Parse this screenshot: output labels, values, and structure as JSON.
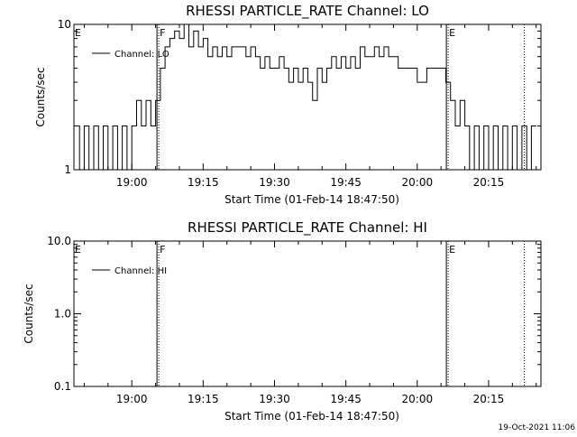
{
  "chart_data": [
    {
      "type": "line",
      "title": "RHESSI PARTICLE_RATE Channel: LO",
      "xlabel": "Start Time (01-Feb-14 18:47:50)",
      "ylabel": "Counts/sec",
      "y_scale": "log",
      "ylim": [
        1,
        10
      ],
      "xlim": [
        "18:47:50",
        "20:26:00"
      ],
      "ytick_labels": [
        "1",
        "10"
      ],
      "y_tick_values": [
        1,
        10
      ],
      "xtick_labels": [
        "19:00",
        "19:15",
        "19:30",
        "19:45",
        "20:00",
        "20:15"
      ],
      "grid": false,
      "legend_position": "top-left",
      "series": [
        {
          "name": "Channel: LO",
          "x": [
            "18:48",
            "18:49",
            "18:50",
            "18:51",
            "18:52",
            "18:53",
            "18:54",
            "18:55",
            "18:56",
            "18:57",
            "18:58",
            "18:59",
            "19:00",
            "19:01",
            "19:02",
            "19:03",
            "19:04",
            "19:05",
            "19:06",
            "19:07",
            "19:08",
            "19:09",
            "19:10",
            "19:11",
            "19:12",
            "19:13",
            "19:14",
            "19:15",
            "19:16",
            "19:17",
            "19:18",
            "19:19",
            "19:20",
            "19:21",
            "19:22",
            "19:23",
            "19:24",
            "19:25",
            "19:26",
            "19:27",
            "19:28",
            "19:29",
            "19:30",
            "19:31",
            "19:32",
            "19:33",
            "19:34",
            "19:35",
            "19:36",
            "19:37",
            "19:38",
            "19:39",
            "19:40",
            "19:41",
            "19:42",
            "19:43",
            "19:44",
            "19:45",
            "19:46",
            "19:47",
            "19:48",
            "19:49",
            "19:50",
            "19:51",
            "19:52",
            "19:53",
            "19:54",
            "19:55",
            "19:56",
            "19:57",
            "19:58",
            "19:59",
            "20:00",
            "20:01",
            "20:02",
            "20:03",
            "20:04",
            "20:05",
            "20:06",
            "20:07",
            "20:08",
            "20:09",
            "20:10",
            "20:11",
            "20:12",
            "20:13",
            "20:14",
            "20:15",
            "20:16",
            "20:17",
            "20:18",
            "20:19",
            "20:20",
            "20:21",
            "20:22",
            "20:23",
            "20:24",
            "20:25"
          ],
          "values": [
            2,
            1,
            2,
            1,
            2,
            1,
            2,
            1,
            2,
            1,
            2,
            1,
            2,
            3,
            2,
            3,
            2,
            3,
            5,
            7,
            8,
            9,
            8,
            10,
            7,
            9,
            7,
            8,
            6,
            7,
            6,
            7,
            6,
            7,
            7,
            7,
            6,
            7,
            6,
            5,
            6,
            5,
            5,
            6,
            5,
            4,
            5,
            4,
            5,
            4,
            3,
            5,
            4,
            5,
            6,
            5,
            6,
            5,
            6,
            5,
            7,
            6,
            6,
            7,
            6,
            7,
            6,
            6,
            5,
            5,
            5,
            5,
            4,
            4,
            5,
            5,
            5,
            5,
            4,
            3,
            2,
            3,
            2,
            1,
            2,
            1,
            2,
            1,
            2,
            1,
            2,
            1,
            2,
            1,
            2,
            1,
            2,
            2
          ]
        }
      ],
      "annotations": [
        {
          "label": "E",
          "time": "18:47:50",
          "line": "none"
        },
        {
          "label": "F",
          "time": "19:05:40",
          "line": "dotted"
        },
        {
          "label": "E",
          "time": "20:06:30",
          "line": "dotted"
        },
        {
          "label": "",
          "time": "20:22:30",
          "line": "dotted"
        }
      ]
    },
    {
      "type": "line",
      "title": "RHESSI PARTICLE_RATE Channel: HI",
      "xlabel": "Start Time (01-Feb-14 18:47:50)",
      "ylabel": "Counts/sec",
      "y_scale": "log",
      "ylim": [
        0.1,
        10
      ],
      "xlim": [
        "18:47:50",
        "20:26:00"
      ],
      "ytick_labels": [
        "0.1",
        "1.0",
        "10.0"
      ],
      "y_tick_values": [
        0.1,
        1,
        10
      ],
      "xtick_labels": [
        "19:00",
        "19:15",
        "19:30",
        "19:45",
        "20:00",
        "20:15"
      ],
      "grid": false,
      "legend_position": "top-left",
      "series": [
        {
          "name": "Channel: HI",
          "x": [],
          "values": []
        }
      ],
      "annotations": [
        {
          "label": "E",
          "time": "18:47:50",
          "line": "none"
        },
        {
          "label": "F",
          "time": "19:05:40",
          "line": "dotted"
        },
        {
          "label": "E",
          "time": "20:06:30",
          "line": "dotted"
        },
        {
          "label": "",
          "time": "20:22:30",
          "line": "dotted"
        }
      ]
    }
  ],
  "footer": {
    "timestamp": "19-Oct-2021 11:06"
  }
}
